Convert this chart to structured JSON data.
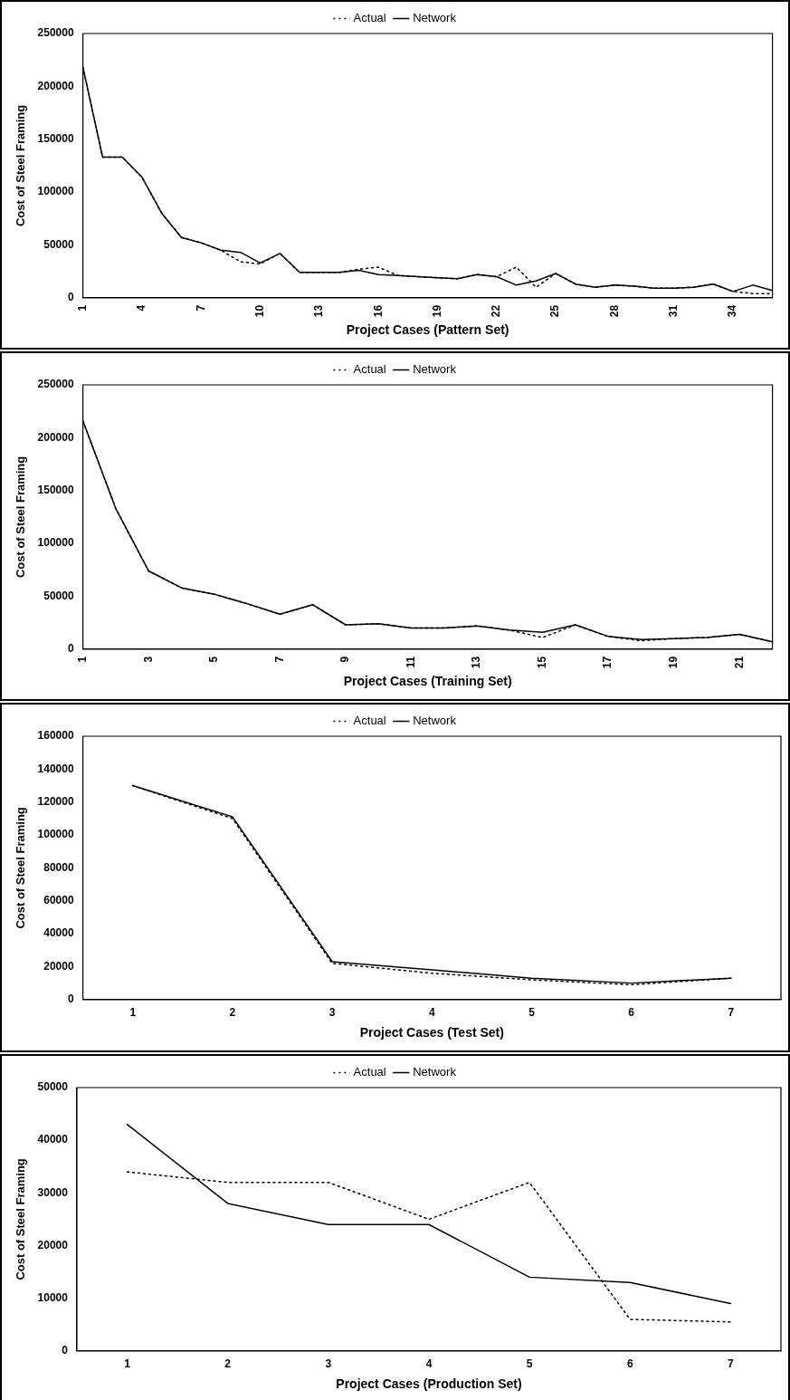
{
  "chart_data": [
    {
      "type": "line",
      "xlabel": "Project Cases (Pattern Set)",
      "ylabel": "Cost of Steel Framing",
      "categories": [
        "1",
        null,
        null,
        "4",
        null,
        null,
        "7",
        null,
        null,
        "10",
        null,
        null,
        "13",
        null,
        null,
        "16",
        null,
        null,
        "19",
        null,
        null,
        "22",
        null,
        null,
        "25",
        null,
        null,
        "28",
        null,
        null,
        "31",
        null,
        null,
        "34",
        null,
        null
      ],
      "ylim": [
        0,
        250000
      ],
      "yticks": [
        0,
        50000,
        100000,
        150000,
        200000,
        250000
      ],
      "grid": false,
      "legend": "top",
      "marker": "none",
      "series": [
        {
          "name": "Actual",
          "color": "#000000",
          "line_style": "dotted",
          "values": [
            218000,
            133000,
            133000,
            114000,
            80000,
            57000,
            52000,
            45000,
            34000,
            32000,
            42000,
            24000,
            24000,
            24000,
            27000,
            29000,
            21000,
            20000,
            19000,
            18000,
            22000,
            20000,
            29000,
            10000,
            23000,
            13000,
            10000,
            12000,
            11000,
            9000,
            9000,
            10000,
            13000,
            6000,
            4000,
            4000
          ]
        },
        {
          "name": "Network",
          "color": "#000000",
          "line_style": "solid",
          "values": [
            218000,
            133000,
            133000,
            114000,
            80000,
            57000,
            52000,
            45000,
            43000,
            33000,
            42000,
            24000,
            24000,
            24000,
            26000,
            22000,
            21000,
            20000,
            19000,
            18000,
            22000,
            20000,
            12000,
            16000,
            23000,
            13000,
            10000,
            12000,
            11000,
            9000,
            9000,
            10000,
            13000,
            6000,
            12000,
            7000
          ]
        }
      ]
    },
    {
      "type": "line",
      "xlabel": "Project Cases (Training Set)",
      "ylabel": "Cost of Steel Framing",
      "categories": [
        "1",
        null,
        "3",
        null,
        "5",
        null,
        "7",
        null,
        "9",
        null,
        "11",
        null,
        "13",
        null,
        "15",
        null,
        "17",
        null,
        "19",
        null,
        "21",
        null
      ],
      "ylim": [
        0,
        250000
      ],
      "yticks": [
        0,
        50000,
        100000,
        150000,
        200000,
        250000
      ],
      "grid": false,
      "legend": "top",
      "marker": "none",
      "series": [
        {
          "name": "Actual",
          "color": "#000000",
          "line_style": "dotted",
          "values": [
            216000,
            133000,
            74000,
            58000,
            52000,
            43000,
            33000,
            42000,
            23000,
            24000,
            20000,
            20000,
            22000,
            18000,
            11000,
            23000,
            12000,
            8000,
            10000,
            11000,
            14000,
            7000
          ]
        },
        {
          "name": "Network",
          "color": "#000000",
          "line_style": "solid",
          "values": [
            216000,
            133000,
            74000,
            58000,
            52000,
            43000,
            33000,
            42000,
            23000,
            24000,
            20000,
            20000,
            22000,
            18000,
            16000,
            23000,
            12000,
            9000,
            10000,
            11000,
            14000,
            7000
          ]
        }
      ]
    },
    {
      "type": "line",
      "xlabel": "Project Cases (Test Set)",
      "ylabel": "Cost of Steel Framing",
      "categories": [
        "1",
        "2",
        "3",
        "4",
        "5",
        "6",
        "7"
      ],
      "ylim": [
        0,
        160000
      ],
      "yticks": [
        0,
        20000,
        40000,
        60000,
        80000,
        100000,
        120000,
        140000,
        160000
      ],
      "grid": false,
      "legend": "top",
      "marker": "none",
      "series": [
        {
          "name": "Actual",
          "color": "#000000",
          "line_style": "dotted",
          "values": [
            130000,
            110000,
            22000,
            16000,
            12000,
            9000,
            13000
          ]
        },
        {
          "name": "Network",
          "color": "#000000",
          "line_style": "solid",
          "values": [
            130000,
            111000,
            23000,
            18000,
            13000,
            10000,
            13000
          ]
        }
      ]
    },
    {
      "type": "line",
      "xlabel": "Project Cases (Production Set)",
      "ylabel": "Cost of Steel Framing",
      "categories": [
        "1",
        "2",
        "3",
        "4",
        "5",
        "6",
        "7"
      ],
      "ylim": [
        0,
        50000
      ],
      "yticks": [
        0,
        10000,
        20000,
        30000,
        40000,
        50000
      ],
      "grid": false,
      "legend": "top",
      "marker": "none",
      "series": [
        {
          "name": "Actual",
          "color": "#000000",
          "line_style": "dotted",
          "values": [
            34000,
            32000,
            32000,
            25000,
            32000,
            6000,
            5500
          ]
        },
        {
          "name": "Network",
          "color": "#000000",
          "line_style": "solid",
          "values": [
            43000,
            28000,
            24000,
            24000,
            14000,
            13000,
            9000
          ]
        }
      ]
    }
  ]
}
